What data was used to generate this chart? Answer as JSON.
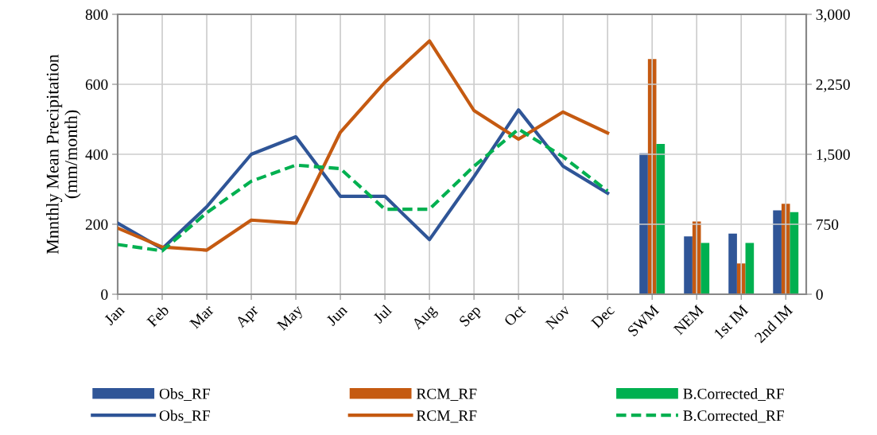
{
  "chart_data": {
    "type": "line",
    "ylabel": "Mnnthly Mean Precipitation\n(mm/month)",
    "categories": [
      "Jan",
      "Feb",
      "Mar",
      "Apr",
      "May",
      "Jun",
      "Jul",
      "Aug",
      "Sep",
      "Oct",
      "Nov",
      "Dec",
      "SWM",
      "NEM",
      "1st IM",
      "2nd IM"
    ],
    "ylim": [
      0,
      800
    ],
    "yticks": [
      0,
      200,
      400,
      600,
      800
    ],
    "y2lim": [
      0,
      3000
    ],
    "y2ticks": [
      0,
      {
        "value": 750,
        "label": "750"
      },
      {
        "value": 1500,
        "label": "1,500"
      },
      {
        "value": 2250,
        "label": "2,250"
      },
      {
        "value": 3000,
        "label": "3,000"
      }
    ],
    "grid": true,
    "legend": "bottom",
    "series": [
      {
        "name": "Obs_RF",
        "type": "bar",
        "axis": "y2",
        "color": "#2f5597",
        "values": [
          null,
          null,
          null,
          null,
          null,
          null,
          null,
          null,
          null,
          null,
          null,
          null,
          1510,
          620,
          650,
          900
        ]
      },
      {
        "name": "RCM_RF",
        "type": "bar",
        "axis": "y2",
        "color": "#c55a11",
        "values": [
          null,
          null,
          null,
          null,
          null,
          null,
          null,
          null,
          null,
          null,
          null,
          null,
          2520,
          780,
          330,
          970
        ]
      },
      {
        "name": "B.Corrected_RF",
        "type": "bar",
        "axis": "y2",
        "color": "#00b050",
        "values": [
          null,
          null,
          null,
          null,
          null,
          null,
          null,
          null,
          null,
          null,
          null,
          null,
          1610,
          550,
          550,
          880
        ]
      },
      {
        "name": "Obs_RF",
        "line_style": "solid",
        "color": "#2f5597",
        "values": [
          203,
          130,
          250,
          400,
          450,
          280,
          280,
          156,
          336,
          527,
          366,
          289,
          null,
          null,
          null,
          null
        ]
      },
      {
        "name": "RCM_RF",
        "line_style": "solid",
        "color": "#c55a11",
        "values": [
          189,
          135,
          126,
          212,
          203,
          463,
          606,
          724,
          525,
          443,
          521,
          461,
          null,
          null,
          null,
          null
        ]
      },
      {
        "name": "B.Corrected_RF",
        "line_style": "dashed",
        "color": "#00b050",
        "values": [
          142,
          124,
          233,
          323,
          369,
          359,
          243,
          243,
          366,
          472,
          393,
          295,
          null,
          null,
          null,
          null
        ]
      }
    ]
  }
}
